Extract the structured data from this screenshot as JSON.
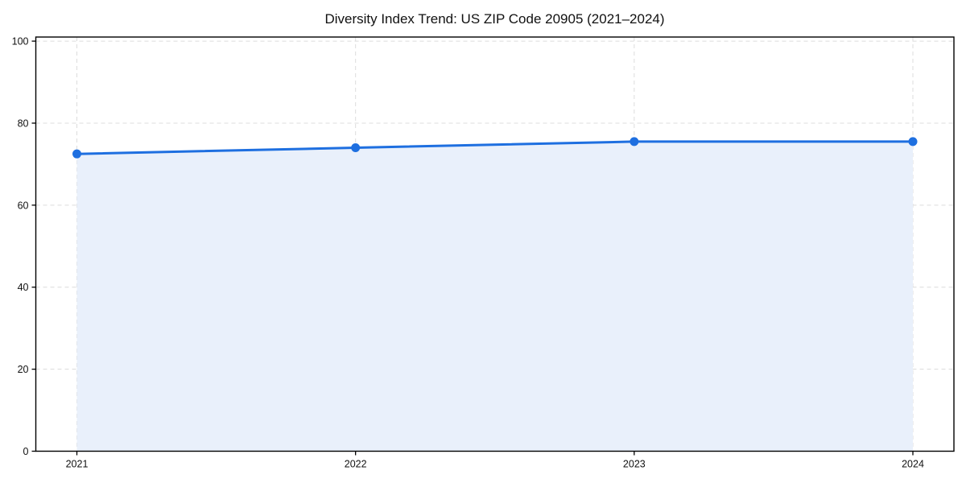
{
  "chart_data": {
    "type": "area",
    "title": "Diversity Index Trend: US ZIP Code 20905 (2021–2024)",
    "categories": [
      "2021",
      "2022",
      "2023",
      "2024"
    ],
    "values": [
      72.5,
      74,
      75.5,
      75.5
    ],
    "series": [
      {
        "name": "Diversity Index",
        "values": [
          72.5,
          74,
          75.5,
          75.5
        ]
      }
    ],
    "xlabel": "",
    "ylabel": "",
    "ylim": [
      0,
      100
    ],
    "yticks": [
      0,
      20,
      40,
      60,
      80,
      100
    ],
    "grid": true,
    "grid_style": "dashed",
    "legend": "none",
    "marker": "circle",
    "colors": {
      "line": "#1e6fe0",
      "marker": "#1e6fe0",
      "fill": "#e9f0fb",
      "grid": "#dcdcdc",
      "axis": "#000000",
      "tick_text": "#111111",
      "background": "#ffffff"
    }
  }
}
